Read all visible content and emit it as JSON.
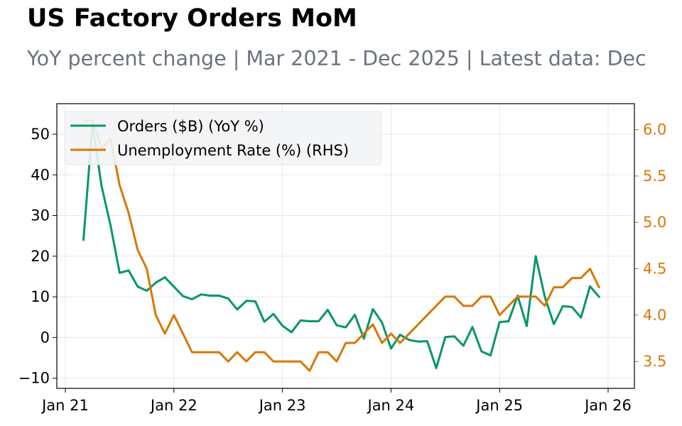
{
  "chart_data": {
    "type": "line",
    "title": "US Factory Orders MoM",
    "subtitle": "YoY percent change | Mar 2021 - Dec 2025 | Latest data: Dec",
    "x_tick_labels": [
      "Jan 21",
      "Jan 22",
      "Jan 23",
      "Jan 24",
      "Jan 25",
      "Jan 26"
    ],
    "y_left": {
      "lim": [
        -12.5,
        57.5
      ],
      "ticks": [
        -10,
        0,
        10,
        20,
        30,
        40,
        50
      ],
      "tick_labels": [
        "−10",
        "0",
        "10",
        "20",
        "30",
        "40",
        "50"
      ]
    },
    "y_right": {
      "lim": [
        3.21,
        6.28
      ],
      "ticks": [
        3.5,
        4.0,
        4.5,
        5.0,
        5.5,
        6.0
      ],
      "tick_labels": [
        "3.5",
        "4.0",
        "4.5",
        "5.0",
        "5.5",
        "6.0"
      ]
    },
    "grid": true,
    "legend_location": "upper-left",
    "series": [
      {
        "name": "Orders ($B) (YoY %)",
        "axis": "left",
        "color": "#059669",
        "x": [
          "2021-03",
          "2021-04",
          "2021-05",
          "2021-06",
          "2021-07",
          "2021-08",
          "2021-09",
          "2021-10",
          "2021-11",
          "2021-12",
          "2022-01",
          "2022-02",
          "2022-03",
          "2022-04",
          "2022-05",
          "2022-06",
          "2022-07",
          "2022-08",
          "2022-09",
          "2022-10",
          "2022-11",
          "2022-12",
          "2023-01",
          "2023-02",
          "2023-03",
          "2023-04",
          "2023-05",
          "2023-06",
          "2023-07",
          "2023-08",
          "2023-09",
          "2023-10",
          "2023-11",
          "2023-12",
          "2024-01",
          "2024-02",
          "2024-03",
          "2024-04",
          "2024-05",
          "2024-06",
          "2024-07",
          "2024-08",
          "2024-09",
          "2024-10",
          "2024-11",
          "2024-12",
          "2025-01",
          "2025-02",
          "2025-03",
          "2025-04",
          "2025-05",
          "2025-06",
          "2025-07",
          "2025-08",
          "2025-09",
          "2025-10",
          "2025-11",
          "2025-12"
        ],
        "values": [
          24,
          52.5,
          37.3,
          27.5,
          15.9,
          16.5,
          12.5,
          11.5,
          13.5,
          14.8,
          12.5,
          10.2,
          9.4,
          10.6,
          10.3,
          10.3,
          9.6,
          6.9,
          9.0,
          8.9,
          3.9,
          5.8,
          2.9,
          1.3,
          4.2,
          4.0,
          4.0,
          6.8,
          3.0,
          2.5,
          5.6,
          -0.3,
          7.0,
          3.7,
          -2.7,
          0.7,
          -0.6,
          -1.0,
          -0.9,
          -7.5,
          0.1,
          0.3,
          -2.0,
          2.6,
          -3.4,
          -4.4,
          3.8,
          4.0,
          10.3,
          2.8,
          20.0,
          10.0,
          3.3,
          7.7,
          7.5,
          4.9,
          12.6,
          10.0
        ]
      },
      {
        "name": "Unemployment Rate (%) (RHS)",
        "axis": "right",
        "color": "#d97706",
        "x": [
          "2021-03",
          "2021-04",
          "2021-05",
          "2021-06",
          "2021-07",
          "2021-08",
          "2021-09",
          "2021-10",
          "2021-11",
          "2021-12",
          "2022-01",
          "2022-02",
          "2022-03",
          "2022-04",
          "2022-05",
          "2022-06",
          "2022-07",
          "2022-08",
          "2022-09",
          "2022-10",
          "2022-11",
          "2022-12",
          "2023-01",
          "2023-02",
          "2023-03",
          "2023-04",
          "2023-05",
          "2023-06",
          "2023-07",
          "2023-08",
          "2023-09",
          "2023-10",
          "2023-11",
          "2023-12",
          "2024-01",
          "2024-02",
          "2024-03",
          "2024-04",
          "2024-05",
          "2024-06",
          "2024-07",
          "2024-08",
          "2024-09",
          "2024-10",
          "2024-11",
          "2024-12",
          "2025-01",
          "2025-02",
          "2025-03",
          "2025-04",
          "2025-05",
          "2025-06",
          "2025-07",
          "2025-08",
          "2025-09",
          "2025-10",
          "2025-11",
          "2025-12"
        ],
        "values": [
          6.1,
          6.1,
          5.8,
          5.9,
          5.4,
          5.1,
          4.7,
          4.5,
          4.0,
          3.8,
          4.0,
          3.8,
          3.6,
          3.6,
          3.6,
          3.6,
          3.5,
          3.6,
          3.5,
          3.6,
          3.6,
          3.5,
          3.5,
          3.5,
          3.5,
          3.4,
          3.6,
          3.6,
          3.5,
          3.7,
          3.7,
          3.8,
          3.9,
          3.7,
          3.8,
          3.7,
          3.8,
          3.9,
          4.0,
          4.1,
          4.2,
          4.2,
          4.1,
          4.1,
          4.2,
          4.2,
          4.0,
          4.1,
          4.2,
          4.2,
          4.2,
          4.1,
          4.3,
          4.3,
          4.4,
          4.4,
          4.5,
          4.3
        ]
      }
    ]
  }
}
